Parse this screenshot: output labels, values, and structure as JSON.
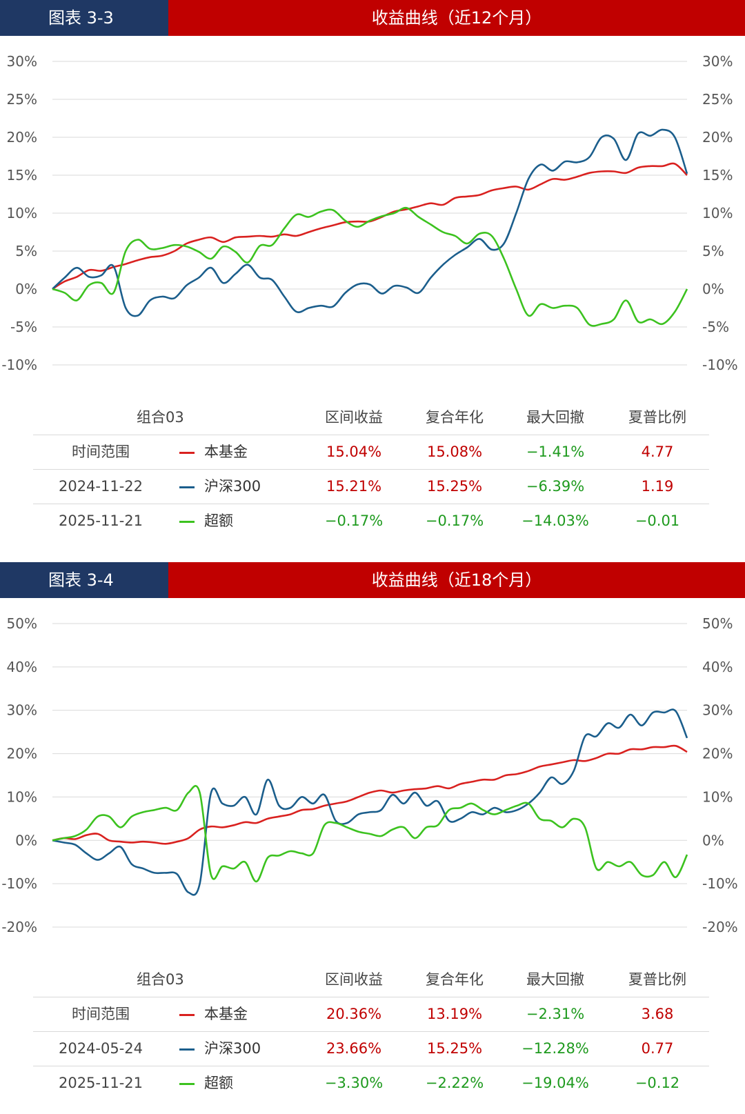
{
  "panels": [
    {
      "tag": "图表 3-3",
      "title": "收益曲线（近12个月）",
      "chart_data": {
        "type": "line",
        "ylim": [
          -10,
          30
        ],
        "yticks": [
          -10,
          -5,
          0,
          5,
          10,
          15,
          20,
          25,
          30
        ],
        "ytick_labels": [
          "-10%",
          "-5%",
          "0%",
          "5%",
          "10%",
          "15%",
          "20%",
          "25%",
          "30%"
        ],
        "grid": true,
        "series": [
          {
            "name": "本基金",
            "color": "#d9211f",
            "values": [
              0,
              1.0,
              1.6,
              2.5,
              2.4,
              2.9,
              3.3,
              3.8,
              4.2,
              4.4,
              5.0,
              6.0,
              6.5,
              6.8,
              6.2,
              6.8,
              6.9,
              7.0,
              6.9,
              7.2,
              7.0,
              7.5,
              8.0,
              8.4,
              8.8,
              8.9,
              8.9,
              9.5,
              10.2,
              10.5,
              10.9,
              11.3,
              11.1,
              12.0,
              12.2,
              12.4,
              13.0,
              13.3,
              13.5,
              13.1,
              13.8,
              14.5,
              14.4,
              14.8,
              15.3,
              15.5,
              15.5,
              15.3,
              16.0,
              16.2,
              16.2,
              16.5,
              15.0
            ]
          },
          {
            "name": "沪深300",
            "color": "#1b5e8c",
            "values": [
              0,
              1.5,
              2.8,
              1.6,
              1.8,
              3.0,
              -2.5,
              -3.5,
              -1.5,
              -1.0,
              -1.2,
              0.5,
              1.5,
              2.8,
              0.8,
              2.0,
              3.2,
              1.5,
              1.2,
              -1.0,
              -3.0,
              -2.5,
              -2.2,
              -2.3,
              -0.5,
              0.6,
              0.6,
              -0.6,
              0.4,
              0.2,
              -0.5,
              1.5,
              3.2,
              4.5,
              5.5,
              6.6,
              5.2,
              6.0,
              10.0,
              14.5,
              16.4,
              15.6,
              16.8,
              16.7,
              17.4,
              20.0,
              19.8,
              17.0,
              20.5,
              20.2,
              21.0,
              20.0,
              15.2
            ]
          },
          {
            "name": "超额",
            "color": "#3cc21f",
            "values": [
              0,
              -0.5,
              -1.5,
              0.5,
              0.8,
              -0.5,
              5.0,
              6.5,
              5.3,
              5.4,
              5.8,
              5.6,
              4.9,
              4.0,
              5.6,
              4.9,
              3.5,
              5.7,
              5.8,
              8.0,
              9.8,
              9.5,
              10.2,
              10.4,
              9.0,
              8.2,
              9.0,
              9.6,
              10.0,
              10.7,
              9.5,
              8.5,
              7.5,
              7.0,
              6.0,
              7.3,
              7.0,
              4.0,
              0.0,
              -3.5,
              -2.0,
              -2.5,
              -2.2,
              -2.5,
              -4.7,
              -4.6,
              -4.0,
              -1.5,
              -4.3,
              -4.0,
              -4.6,
              -3.0,
              0.0
            ]
          }
        ]
      },
      "table": {
        "header": {
          "group": "组合03",
          "cols": [
            "区间收益",
            "复合年化",
            "最大回撤",
            "夏普比例"
          ]
        },
        "rows": [
          {
            "range": "时间范围",
            "legend": "本基金",
            "legend_color": "#d9211f",
            "vals": [
              "15.04%",
              "15.08%",
              "−1.41%",
              "4.77"
            ],
            "val_colors": [
              "#c00000",
              "#c00000",
              "#1e9a1e",
              "#c00000"
            ]
          },
          {
            "range": "2024-11-22",
            "legend": "沪深300",
            "legend_color": "#1b5e8c",
            "vals": [
              "15.21%",
              "15.25%",
              "−6.39%",
              "1.19"
            ],
            "val_colors": [
              "#c00000",
              "#c00000",
              "#1e9a1e",
              "#c00000"
            ]
          },
          {
            "range": "2025-11-21",
            "legend": "超额",
            "legend_color": "#3cc21f",
            "vals": [
              "−0.17%",
              "−0.17%",
              "−14.03%",
              "−0.01"
            ],
            "val_colors": [
              "#1e9a1e",
              "#1e9a1e",
              "#1e9a1e",
              "#1e9a1e"
            ]
          }
        ]
      }
    },
    {
      "tag": "图表 3-4",
      "title": "收益曲线（近18个月）",
      "chart_data": {
        "type": "line",
        "ylim": [
          -20,
          50
        ],
        "yticks": [
          -20,
          -10,
          0,
          10,
          20,
          30,
          40,
          50
        ],
        "ytick_labels": [
          "-20%",
          "-10%",
          "0%",
          "10%",
          "20%",
          "30%",
          "40%",
          "50%"
        ],
        "grid": true,
        "series": [
          {
            "name": "本基金",
            "color": "#d9211f",
            "values": [
              0,
              0.5,
              0.3,
              1.2,
              1.5,
              0,
              -0.3,
              -0.5,
              -0.3,
              -0.5,
              -0.8,
              -0.3,
              0.5,
              2.5,
              3.2,
              3.0,
              3.5,
              4.2,
              4.0,
              5.0,
              5.5,
              6.0,
              7.0,
              7.2,
              8.0,
              8.5,
              9.0,
              10.0,
              11.0,
              11.5,
              11.0,
              11.5,
              11.8,
              12.0,
              12.5,
              12.0,
              13.0,
              13.5,
              14.0,
              14.0,
              15.0,
              15.3,
              16.0,
              17.0,
              17.5,
              18.0,
              18.5,
              18.3,
              19.0,
              20.0,
              20.0,
              21.0,
              21.0,
              21.5,
              21.5,
              21.8,
              20.4
            ]
          },
          {
            "name": "沪深300",
            "color": "#1b5e8c",
            "values": [
              0,
              -0.5,
              -1.0,
              -3.0,
              -4.5,
              -3.0,
              -1.5,
              -5.5,
              -6.5,
              -7.5,
              -7.5,
              -7.8,
              -12.0,
              -10.0,
              11.0,
              8.5,
              8.0,
              10.0,
              6.0,
              14.0,
              8.0,
              7.5,
              10.0,
              8.5,
              10.5,
              4.5,
              4.0,
              6.0,
              6.5,
              7.0,
              10.5,
              8.5,
              11.0,
              8.0,
              9.0,
              4.5,
              5.0,
              6.5,
              6.0,
              7.5,
              6.5,
              7.0,
              8.5,
              11.0,
              14.5,
              13.0,
              16.0,
              24.0,
              24.0,
              27.0,
              26.0,
              29.0,
              26.5,
              29.5,
              29.5,
              29.8,
              23.6
            ]
          },
          {
            "name": "超额",
            "color": "#3cc21f",
            "values": [
              0,
              0.5,
              1.0,
              2.5,
              5.5,
              5.5,
              3.0,
              5.5,
              6.5,
              7.0,
              7.5,
              7.0,
              11.0,
              11.0,
              -8.0,
              -6.0,
              -6.5,
              -5.0,
              -9.5,
              -4.0,
              -3.5,
              -2.5,
              -3.0,
              -3.0,
              3.5,
              4.0,
              3.0,
              2.0,
              1.5,
              1.0,
              2.5,
              3.0,
              0.5,
              3.0,
              3.5,
              7.0,
              7.5,
              8.5,
              7.0,
              6.0,
              7.0,
              8.0,
              8.5,
              5.0,
              4.5,
              3.0,
              5.0,
              3.0,
              -6.5,
              -5.0,
              -6.0,
              -5.0,
              -8.0,
              -8.0,
              -5.0,
              -8.5,
              -3.3
            ]
          }
        ]
      },
      "table": {
        "header": {
          "group": "组合03",
          "cols": [
            "区间收益",
            "复合年化",
            "最大回撤",
            "夏普比例"
          ]
        },
        "rows": [
          {
            "range": "时间范围",
            "legend": "本基金",
            "legend_color": "#d9211f",
            "vals": [
              "20.36%",
              "13.19%",
              "−2.31%",
              "3.68"
            ],
            "val_colors": [
              "#c00000",
              "#c00000",
              "#1e9a1e",
              "#c00000"
            ]
          },
          {
            "range": "2024-05-24",
            "legend": "沪深300",
            "legend_color": "#1b5e8c",
            "vals": [
              "23.66%",
              "15.25%",
              "−12.28%",
              "0.77"
            ],
            "val_colors": [
              "#c00000",
              "#c00000",
              "#1e9a1e",
              "#c00000"
            ]
          },
          {
            "range": "2025-11-21",
            "legend": "超额",
            "legend_color": "#3cc21f",
            "vals": [
              "−3.30%",
              "−2.22%",
              "−19.04%",
              "−0.12"
            ],
            "val_colors": [
              "#1e9a1e",
              "#1e9a1e",
              "#1e9a1e",
              "#1e9a1e"
            ]
          }
        ]
      }
    }
  ]
}
